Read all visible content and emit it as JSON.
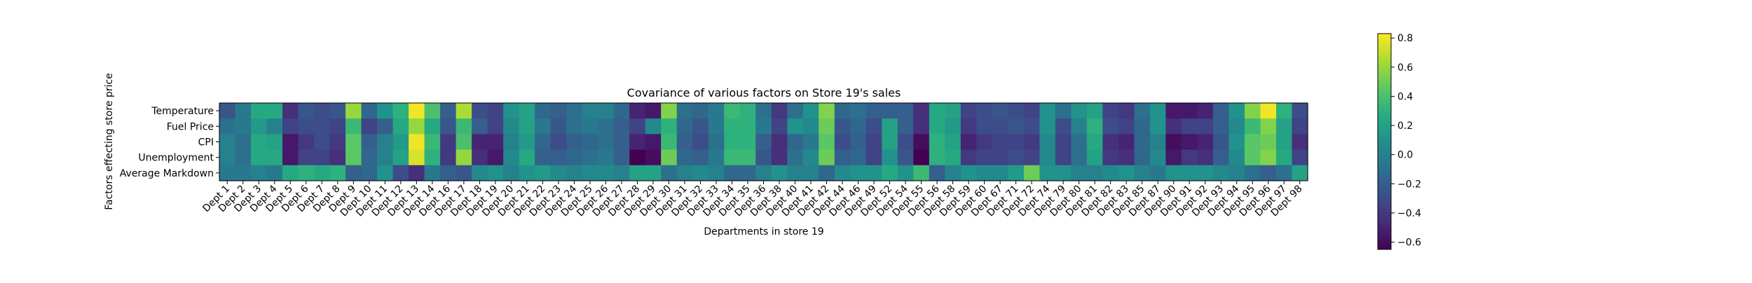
{
  "chart_data": {
    "type": "heatmap",
    "title": "Covariance of various factors on Store 19's sales",
    "xlabel": "Departments in store 19",
    "ylabel": "Factors effecting store price",
    "rows": [
      "Temperature",
      "Fuel Price",
      "CPI",
      "Unemployment",
      "Average Markdown"
    ],
    "columns": [
      "Dept 1",
      "Dept 2",
      "Dept 3",
      "Dept 4",
      "Dept 5",
      "Dept 6",
      "Dept 7",
      "Dept 8",
      "Dept 9",
      "Dept 10",
      "Dept 11",
      "Dept 12",
      "Dept 13",
      "Dept 14",
      "Dept 16",
      "Dept 17",
      "Dept 18",
      "Dept 19",
      "Dept 20",
      "Dept 21",
      "Dept 22",
      "Dept 23",
      "Dept 24",
      "Dept 25",
      "Dept 26",
      "Dept 27",
      "Dept 28",
      "Dept 29",
      "Dept 30",
      "Dept 31",
      "Dept 32",
      "Dept 33",
      "Dept 34",
      "Dept 35",
      "Dept 36",
      "Dept 38",
      "Dept 40",
      "Dept 41",
      "Dept 42",
      "Dept 44",
      "Dept 46",
      "Dept 49",
      "Dept 52",
      "Dept 54",
      "Dept 55",
      "Dept 56",
      "Dept 58",
      "Dept 59",
      "Dept 60",
      "Dept 67",
      "Dept 71",
      "Dept 72",
      "Dept 74",
      "Dept 79",
      "Dept 80",
      "Dept 81",
      "Dept 82",
      "Dept 83",
      "Dept 85",
      "Dept 87",
      "Dept 90",
      "Dept 91",
      "Dept 92",
      "Dept 93",
      "Dept 94",
      "Dept 95",
      "Dept 96",
      "Dept 97",
      "Dept 98"
    ],
    "values": [
      [
        -0.25,
        -0.05,
        0.25,
        0.25,
        -0.45,
        -0.25,
        -0.3,
        -0.25,
        0.6,
        -0.15,
        0.1,
        0.3,
        0.8,
        0.4,
        -0.2,
        0.65,
        -0.3,
        -0.35,
        0.1,
        0.2,
        -0.15,
        -0.2,
        -0.1,
        0.0,
        0.0,
        -0.15,
        -0.5,
        -0.55,
        0.55,
        -0.1,
        -0.15,
        -0.05,
        0.35,
        0.3,
        -0.1,
        -0.4,
        -0.1,
        0.1,
        0.55,
        -0.15,
        -0.1,
        -0.2,
        -0.2,
        -0.2,
        -0.45,
        0.25,
        0.2,
        -0.35,
        -0.3,
        -0.25,
        -0.3,
        -0.35,
        0.1,
        -0.1,
        0.1,
        0.2,
        -0.35,
        -0.4,
        -0.1,
        0.1,
        -0.55,
        -0.55,
        -0.5,
        -0.2,
        0.1,
        0.55,
        0.8,
        0.3,
        -0.3
      ],
      [
        -0.1,
        -0.05,
        0.15,
        0.0,
        -0.35,
        -0.3,
        -0.3,
        -0.35,
        0.35,
        -0.35,
        -0.2,
        0.25,
        0.6,
        0.25,
        -0.25,
        0.35,
        -0.2,
        -0.35,
        0.05,
        0.2,
        -0.05,
        -0.25,
        -0.1,
        -0.05,
        -0.1,
        -0.2,
        -0.35,
        0.05,
        0.3,
        -0.15,
        -0.25,
        -0.05,
        0.3,
        0.3,
        -0.05,
        -0.35,
        0.1,
        0.05,
        0.5,
        -0.25,
        -0.15,
        -0.3,
        0.2,
        -0.2,
        -0.45,
        0.25,
        0.15,
        -0.4,
        -0.3,
        -0.3,
        -0.25,
        -0.3,
        0.1,
        -0.3,
        0.0,
        0.3,
        -0.3,
        -0.35,
        -0.15,
        0.1,
        -0.45,
        -0.35,
        -0.35,
        -0.2,
        0.05,
        0.35,
        0.55,
        0.2,
        -0.35
      ],
      [
        0.0,
        -0.1,
        0.25,
        0.2,
        -0.55,
        -0.4,
        -0.3,
        -0.4,
        0.45,
        -0.2,
        0.0,
        0.15,
        0.8,
        0.35,
        -0.4,
        0.4,
        -0.5,
        -0.5,
        0.0,
        0.15,
        -0.15,
        -0.3,
        -0.2,
        -0.15,
        -0.1,
        -0.2,
        -0.5,
        -0.55,
        0.35,
        -0.2,
        -0.3,
        -0.1,
        0.3,
        0.3,
        -0.2,
        -0.45,
        -0.15,
        -0.05,
        0.45,
        -0.3,
        -0.2,
        -0.35,
        0.2,
        -0.3,
        -0.6,
        0.3,
        0.2,
        -0.5,
        -0.4,
        -0.35,
        -0.35,
        -0.4,
        0.05,
        -0.35,
        -0.1,
        0.25,
        -0.45,
        -0.5,
        -0.15,
        0.0,
        -0.6,
        -0.55,
        -0.5,
        -0.25,
        0.1,
        0.45,
        0.5,
        0.2,
        -0.45
      ],
      [
        0.0,
        -0.1,
        0.25,
        0.25,
        -0.55,
        -0.35,
        -0.35,
        -0.45,
        0.45,
        -0.15,
        0.0,
        0.2,
        0.75,
        0.3,
        -0.4,
        0.6,
        -0.45,
        -0.55,
        0.05,
        0.25,
        -0.2,
        -0.2,
        -0.15,
        -0.1,
        -0.05,
        -0.2,
        -0.65,
        -0.6,
        0.5,
        -0.15,
        -0.2,
        -0.05,
        0.35,
        0.35,
        -0.25,
        -0.45,
        -0.1,
        0.05,
        0.5,
        -0.2,
        -0.15,
        -0.35,
        0.1,
        -0.25,
        -0.65,
        0.3,
        0.25,
        -0.4,
        -0.35,
        -0.35,
        -0.3,
        -0.35,
        0.05,
        -0.35,
        -0.1,
        0.2,
        -0.4,
        -0.45,
        -0.15,
        0.05,
        -0.55,
        -0.4,
        -0.45,
        -0.2,
        0.05,
        0.45,
        0.55,
        0.25,
        -0.35
      ],
      [
        -0.05,
        -0.05,
        0.0,
        -0.05,
        0.25,
        0.3,
        0.25,
        0.3,
        -0.2,
        -0.15,
        0.1,
        -0.3,
        -0.45,
        -0.05,
        -0.2,
        -0.25,
        0.05,
        0.1,
        0.0,
        0.1,
        0.15,
        0.05,
        0.0,
        0.05,
        0.05,
        0.0,
        0.2,
        0.2,
        -0.1,
        0.0,
        0.05,
        0.0,
        -0.15,
        -0.15,
        0.0,
        0.1,
        0.0,
        0.0,
        -0.15,
        0.05,
        0.1,
        0.1,
        0.25,
        0.1,
        0.35,
        -0.2,
        0.0,
        0.1,
        0.05,
        0.05,
        0.15,
        0.5,
        0.1,
        0.1,
        0.0,
        0.0,
        0.05,
        0.1,
        0.0,
        -0.05,
        0.1,
        0.1,
        0.1,
        0.05,
        0.0,
        -0.1,
        -0.2,
        -0.1,
        0.2
      ]
    ],
    "colorbar": {
      "vmin": -0.65,
      "vmax": 0.83,
      "ticks": [
        -0.6,
        -0.4,
        -0.2,
        0.0,
        0.2,
        0.4,
        0.6,
        0.8
      ],
      "tick_labels": [
        "−0.6",
        "−0.4",
        "−0.2",
        "0.0",
        "0.2",
        "0.4",
        "0.6",
        "0.8"
      ]
    },
    "colormap": "viridis"
  }
}
